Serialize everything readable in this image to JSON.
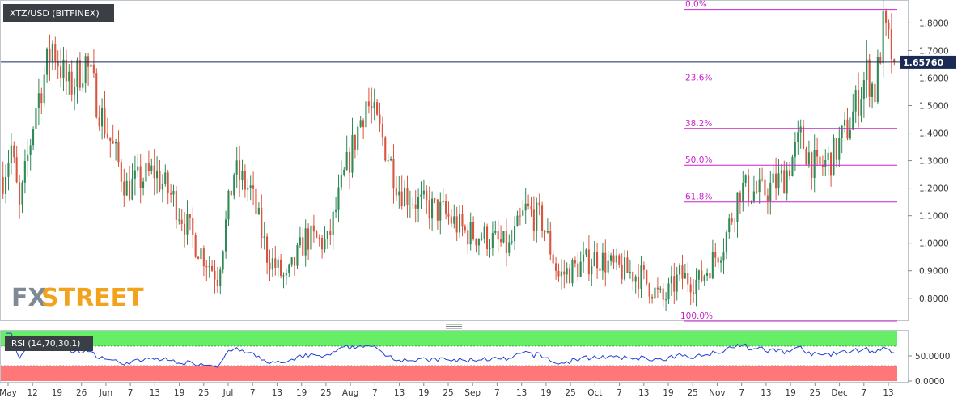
{
  "symbol_label": "XTZ/USD (BITFINEX)",
  "rsi_label": "RSI (14,70,30,1)",
  "watermark": {
    "fx": "FX",
    "street": "STREET"
  },
  "price_tag": "1.65760",
  "colors": {
    "up": "#2f8a57",
    "down": "#d9553f",
    "fib": "#cc22cc",
    "price_line": "#1a2a55",
    "rsi_line": "#1f3fd6",
    "rsi_overbought_fill": "#66ee66",
    "rsi_oversold_fill": "#ff7777",
    "watermark_fx": "#7f8a95",
    "watermark_street": "#f3a21b"
  },
  "chart_data": {
    "type": "candlestick",
    "title": "XTZ/USD (BITFINEX)",
    "y_axis": {
      "ylim": [
        0.72,
        1.86
      ],
      "ticks": [
        "1.8000",
        "1.7000",
        "1.6000",
        "1.5000",
        "1.4000",
        "1.3000",
        "1.2000",
        "1.1000",
        "1.0000",
        "0.9000",
        "0.8000"
      ]
    },
    "x_axis": {
      "ticks": [
        "May",
        "12",
        "19",
        "26",
        "Jun",
        "7",
        "13",
        "19",
        "25",
        "Jul",
        "7",
        "13",
        "19",
        "25",
        "Aug",
        "7",
        "13",
        "19",
        "25",
        "Sep",
        "7",
        "13",
        "19",
        "25",
        "Oct",
        "7",
        "13",
        "19",
        "25",
        "Nov",
        "7",
        "13",
        "19",
        "25",
        "Dec",
        "7",
        "13"
      ]
    },
    "current_price": 1.6576,
    "anchors": [
      [
        0,
        1.24
      ],
      [
        3,
        1.35
      ],
      [
        6,
        1.12
      ],
      [
        12,
        1.5
      ],
      [
        18,
        1.72
      ],
      [
        24,
        1.56
      ],
      [
        30,
        1.66
      ],
      [
        36,
        1.46
      ],
      [
        45,
        1.2
      ],
      [
        55,
        1.26
      ],
      [
        62,
        1.16
      ],
      [
        70,
        1.0
      ],
      [
        78,
        0.88
      ],
      [
        84,
        1.26
      ],
      [
        90,
        1.19
      ],
      [
        96,
        0.96
      ],
      [
        103,
        0.86
      ],
      [
        110,
        1.02
      ],
      [
        118,
        1.0
      ],
      [
        124,
        1.24
      ],
      [
        132,
        1.52
      ],
      [
        138,
        1.38
      ],
      [
        144,
        1.2
      ],
      [
        152,
        1.14
      ],
      [
        160,
        1.11
      ],
      [
        168,
        1.04
      ],
      [
        176,
        1.02
      ],
      [
        184,
        0.98
      ],
      [
        190,
        1.12
      ],
      [
        196,
        1.08
      ],
      [
        202,
        0.88
      ],
      [
        210,
        0.92
      ],
      [
        216,
        0.95
      ],
      [
        222,
        0.91
      ],
      [
        232,
        0.88
      ],
      [
        240,
        0.79
      ],
      [
        246,
        0.88
      ],
      [
        253,
        0.86
      ],
      [
        262,
        1.0
      ],
      [
        268,
        1.2
      ],
      [
        276,
        1.18
      ],
      [
        284,
        1.24
      ],
      [
        290,
        1.38
      ],
      [
        296,
        1.26
      ],
      [
        302,
        1.32
      ],
      [
        308,
        1.44
      ],
      [
        314,
        1.62
      ],
      [
        317,
        1.55
      ],
      [
        320,
        1.78
      ],
      [
        322,
        1.72
      ],
      [
        324,
        1.6576
      ]
    ],
    "fibonacci": [
      {
        "label": "0.0%",
        "value": 1.8495
      },
      {
        "label": "23.6%",
        "value": 1.5823
      },
      {
        "label": "38.2%",
        "value": 1.417
      },
      {
        "label": "50.0%",
        "value": 1.2834
      },
      {
        "label": "61.8%",
        "value": 1.1498
      },
      {
        "label": "100.0%",
        "value": 0.7172
      }
    ],
    "rsi": {
      "ylim": [
        0,
        100
      ],
      "levels": [
        70,
        30
      ],
      "ticks": [
        "50.0000",
        "0.0000"
      ]
    }
  }
}
